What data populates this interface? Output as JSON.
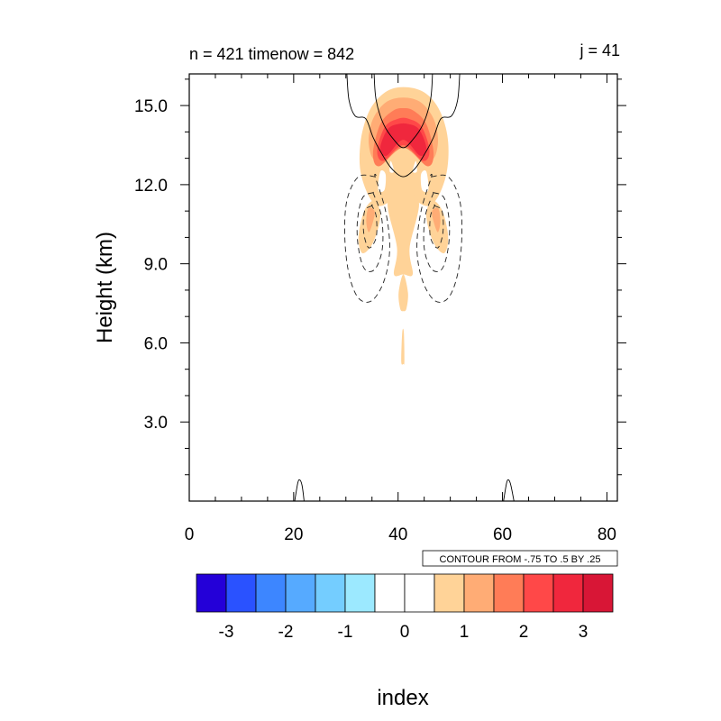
{
  "chart_data": {
    "type": "contour",
    "title_left": "n = 421 timenow = 842",
    "title_right": "j = 41",
    "xlabel": "index",
    "ylabel": "Height (km)",
    "xlim": [
      0,
      82
    ],
    "ylim": [
      0,
      16.2
    ],
    "xticks": [
      0,
      20,
      40,
      60,
      80
    ],
    "xtick_labels": [
      "0",
      "20",
      "40",
      "60",
      "80"
    ],
    "yticks": [
      3,
      6,
      9,
      12,
      15
    ],
    "ytick_labels": [
      "3.0",
      "6.0",
      "9.0",
      "12.0",
      "15.0"
    ],
    "contour_info": "CONTOUR FROM -.75 TO .5 BY .25",
    "colorbar": {
      "colors": [
        "#2400d8",
        "#2a52ff",
        "#3d86ff",
        "#56aaff",
        "#74cdff",
        "#9ce9ff",
        "#ffffff",
        "#ffffff",
        "#ffd398",
        "#ffac75",
        "#ff7c57",
        "#ff4848",
        "#f0273d",
        "#d81636"
      ],
      "labels": [
        "-3",
        "-2",
        "-1",
        "0",
        "1",
        "2",
        "3"
      ]
    },
    "filled_regions": [
      {
        "level": 1,
        "color": "#ffd398",
        "polygon": [
          [
            36,
            11.2
          ],
          [
            33,
            12.3
          ],
          [
            32.8,
            13.6
          ],
          [
            34.5,
            14.8
          ],
          [
            37.5,
            15.5
          ],
          [
            41,
            15.7
          ],
          [
            45,
            15.5
          ],
          [
            48,
            14.8
          ],
          [
            49.6,
            13.6
          ],
          [
            49,
            12.2
          ],
          [
            46,
            11.2
          ],
          [
            41,
            11.6
          ]
        ]
      },
      {
        "level": 1,
        "color": "#ffd398",
        "polygon": [
          [
            35.5,
            11.4
          ],
          [
            33.5,
            11.0
          ],
          [
            32.4,
            10.0
          ],
          [
            33.2,
            9.4
          ],
          [
            35.2,
            9.8
          ],
          [
            36.6,
            10.8
          ]
        ]
      },
      {
        "level": 1,
        "color": "#ffd398",
        "polygon": [
          [
            46.5,
            11.4
          ],
          [
            48.5,
            11.0
          ],
          [
            49.6,
            10.0
          ],
          [
            48.8,
            9.4
          ],
          [
            46.8,
            9.8
          ],
          [
            45.4,
            10.8
          ]
        ]
      },
      {
        "level": 1,
        "color": "#ffd398",
        "polygon": [
          [
            38,
            11.3
          ],
          [
            39.8,
            9.6
          ],
          [
            39.2,
            8.6
          ],
          [
            41,
            8.6
          ],
          [
            42.8,
            8.6
          ],
          [
            42.2,
            9.6
          ],
          [
            44,
            11.3
          ],
          [
            41,
            11.7
          ]
        ]
      },
      {
        "level": 1,
        "color": "#ffd398",
        "polygon": [
          [
            41,
            8.6
          ],
          [
            40.1,
            7.9
          ],
          [
            40.4,
            7.3
          ],
          [
            41,
            7.2
          ],
          [
            41.6,
            7.3
          ],
          [
            41.9,
            7.9
          ]
        ]
      },
      {
        "level": 1,
        "color": "#ffd398",
        "polygon": [
          [
            40.8,
            6.4
          ],
          [
            40.6,
            5.3
          ],
          [
            41,
            5.2
          ],
          [
            41.2,
            5.3
          ],
          [
            41.1,
            6.4
          ]
        ]
      },
      {
        "level": 2,
        "color": "#ffac75",
        "polygon": [
          [
            35,
            14.4
          ],
          [
            37.5,
            15.1
          ],
          [
            41,
            15.3
          ],
          [
            44.5,
            15.1
          ],
          [
            47,
            14.4
          ],
          [
            47.6,
            13.5
          ],
          [
            46,
            12.9
          ],
          [
            41,
            13.4
          ],
          [
            36,
            12.9
          ],
          [
            34.4,
            13.5
          ]
        ]
      },
      {
        "level": 3,
        "color": "#ff7c57",
        "polygon": [
          [
            35.2,
            13.2
          ],
          [
            36.6,
            14.3
          ],
          [
            39,
            14.8
          ],
          [
            41,
            14.9
          ],
          [
            43,
            14.8
          ],
          [
            45.4,
            14.3
          ],
          [
            46.8,
            13.2
          ],
          [
            45.6,
            12.7
          ],
          [
            41,
            13.4
          ],
          [
            36.4,
            12.7
          ]
        ]
      },
      {
        "level": 4,
        "color": "#ff4848",
        "polygon": [
          [
            36,
            13.3
          ],
          [
            37.5,
            14.2
          ],
          [
            40,
            14.5
          ],
          [
            42,
            14.5
          ],
          [
            44.5,
            14.2
          ],
          [
            46,
            13.3
          ],
          [
            44.8,
            12.9
          ],
          [
            41,
            13.5
          ],
          [
            37.2,
            12.9
          ]
        ]
      },
      {
        "level": 5,
        "color": "#f0273d",
        "polygon": [
          [
            36.6,
            13.4
          ],
          [
            38,
            14.1
          ],
          [
            40,
            14.3
          ],
          [
            42,
            14.3
          ],
          [
            44,
            14.1
          ],
          [
            45.4,
            13.4
          ],
          [
            44.2,
            13.1
          ],
          [
            41,
            13.7
          ],
          [
            37.8,
            13.1
          ]
        ]
      },
      {
        "level": 2,
        "color": "#ffac75",
        "polygon": [
          [
            34.3,
            11.1
          ],
          [
            33.9,
            10.6
          ],
          [
            34.4,
            10.2
          ],
          [
            35.2,
            10.6
          ],
          [
            35.5,
            11.0
          ]
        ]
      },
      {
        "level": 2,
        "color": "#ffac75",
        "polygon": [
          [
            47.7,
            11.1
          ],
          [
            48.1,
            10.6
          ],
          [
            47.6,
            10.2
          ],
          [
            46.8,
            10.6
          ],
          [
            46.5,
            11.0
          ]
        ]
      }
    ],
    "white_holes": [
      {
        "polygon": [
          [
            36.6,
            12.5
          ],
          [
            36.2,
            11.8
          ],
          [
            37.4,
            11.8
          ],
          [
            37.6,
            12.4
          ]
        ]
      },
      {
        "polygon": [
          [
            45.4,
            12.5
          ],
          [
            45.8,
            11.8
          ],
          [
            44.6,
            11.8
          ],
          [
            44.4,
            12.4
          ]
        ]
      },
      {
        "polygon": [
          [
            38.6,
            12.9
          ],
          [
            38.4,
            12.5
          ],
          [
            39.2,
            12.5
          ]
        ]
      },
      {
        "polygon": [
          [
            43.4,
            12.9
          ],
          [
            43.6,
            12.5
          ],
          [
            42.8,
            12.5
          ]
        ]
      }
    ],
    "solid_contours": [
      [
        [
          30.2,
          16.2
        ],
        [
          30.6,
          15.2
        ],
        [
          31.8,
          14.6
        ],
        [
          33.8,
          14.5
        ],
        [
          35.2,
          13.8
        ],
        [
          36.8,
          13.2
        ],
        [
          38.8,
          12.6
        ],
        [
          41,
          12.3
        ],
        [
          43.2,
          12.6
        ],
        [
          45.2,
          13.2
        ],
        [
          46.8,
          13.8
        ],
        [
          48.2,
          14.5
        ],
        [
          50.2,
          14.6
        ],
        [
          51.4,
          15.2
        ],
        [
          51.8,
          16.2
        ]
      ],
      [
        [
          35.4,
          16.2
        ],
        [
          35.8,
          15.2
        ],
        [
          37.2,
          14.3
        ],
        [
          39.2,
          13.7
        ],
        [
          41,
          13.4
        ],
        [
          42.8,
          13.7
        ],
        [
          44.8,
          14.3
        ],
        [
          46.2,
          15.2
        ],
        [
          46.6,
          16.2
        ]
      ],
      [
        [
          20.2,
          0
        ],
        [
          20.8,
          0.7
        ],
        [
          21.2,
          0.8
        ],
        [
          21.6,
          0.6
        ],
        [
          22,
          0
        ]
      ],
      [
        [
          60.2,
          0
        ],
        [
          60.8,
          0.7
        ],
        [
          61.2,
          0.8
        ],
        [
          61.6,
          0.6
        ],
        [
          62.2,
          0
        ]
      ]
    ],
    "dashed_contours": [
      [
        [
          35.6,
          12.3
        ],
        [
          32.4,
          12.3
        ],
        [
          30.2,
          11.4
        ],
        [
          29.8,
          10.0
        ],
        [
          30.6,
          8.6
        ],
        [
          32.4,
          7.7
        ],
        [
          35,
          7.6
        ],
        [
          37.4,
          8.4
        ],
        [
          38.4,
          9.6
        ],
        [
          37.6,
          11.0
        ],
        [
          35.6,
          12.3
        ]
      ],
      [
        [
          35.2,
          11.7
        ],
        [
          33.2,
          11.5
        ],
        [
          32.2,
          10.6
        ],
        [
          32.4,
          9.6
        ],
        [
          33.6,
          8.8
        ],
        [
          35.6,
          8.8
        ],
        [
          37,
          9.6
        ],
        [
          36.8,
          10.8
        ],
        [
          35.2,
          11.7
        ]
      ],
      [
        [
          35,
          11.2
        ],
        [
          33.6,
          11.0
        ],
        [
          33.4,
          10.2
        ],
        [
          34.4,
          9.6
        ],
        [
          35.8,
          10.0
        ],
        [
          35.8,
          10.8
        ],
        [
          35,
          11.2
        ]
      ],
      [
        [
          46.4,
          12.3
        ],
        [
          49.6,
          12.3
        ],
        [
          51.8,
          11.4
        ],
        [
          52.2,
          10.0
        ],
        [
          51.4,
          8.6
        ],
        [
          49.6,
          7.7
        ],
        [
          47,
          7.6
        ],
        [
          44.6,
          8.4
        ],
        [
          43.6,
          9.6
        ],
        [
          44.4,
          11.0
        ],
        [
          46.4,
          12.3
        ]
      ],
      [
        [
          46.8,
          11.7
        ],
        [
          48.8,
          11.5
        ],
        [
          49.8,
          10.6
        ],
        [
          49.6,
          9.6
        ],
        [
          48.4,
          8.8
        ],
        [
          46.4,
          8.8
        ],
        [
          45,
          9.6
        ],
        [
          45.2,
          10.8
        ],
        [
          46.8,
          11.7
        ]
      ],
      [
        [
          47,
          11.2
        ],
        [
          48.4,
          11.0
        ],
        [
          48.6,
          10.2
        ],
        [
          47.6,
          9.6
        ],
        [
          46.2,
          10.0
        ],
        [
          46.2,
          10.8
        ],
        [
          47,
          11.2
        ]
      ]
    ]
  }
}
